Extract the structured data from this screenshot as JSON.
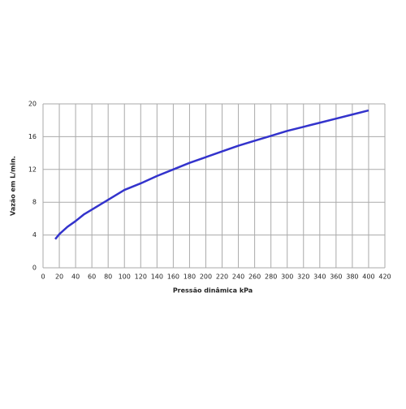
{
  "chart_data": {
    "type": "line",
    "x_label": "Pressão dinâmica kPa",
    "y_label": "Vazão em L/min.",
    "x": [
      15,
      20,
      30,
      40,
      50,
      60,
      80,
      100,
      120,
      140,
      160,
      180,
      200,
      220,
      240,
      260,
      280,
      300,
      320,
      340,
      360,
      380,
      400
    ],
    "series": [
      {
        "color": "#3333cc",
        "values": [
          3.5,
          4.1,
          5.0,
          5.7,
          6.5,
          7.1,
          8.3,
          9.5,
          10.3,
          11.2,
          12.0,
          12.8,
          13.5,
          14.2,
          14.9,
          15.5,
          16.1,
          16.7,
          17.2,
          17.7,
          18.2,
          18.7,
          19.2
        ]
      }
    ],
    "xlim": [
      0,
      420
    ],
    "xticks": [
      0,
      20,
      40,
      60,
      80,
      100,
      120,
      140,
      160,
      180,
      200,
      220,
      240,
      260,
      280,
      300,
      320,
      340,
      360,
      380,
      400,
      420
    ],
    "ylim": [
      0,
      20
    ],
    "yticks": [
      0,
      4,
      8,
      12,
      16,
      20
    ],
    "grid": true
  }
}
